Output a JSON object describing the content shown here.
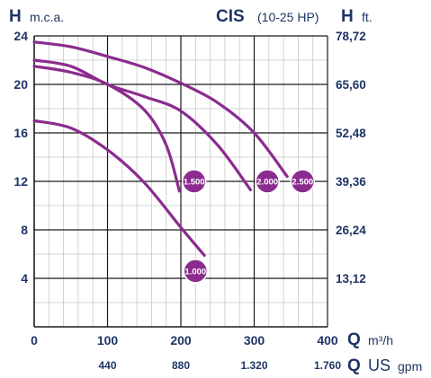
{
  "header": {
    "left_symbol": "H",
    "left_unit": "m.c.a.",
    "model": "CIS",
    "power_range": "(10-25 HP)",
    "right_symbol": "H",
    "right_unit": "ft.",
    "bottom_symbol": "Q",
    "bottom_unit": "m³/h",
    "bottom2_symbol": "Q",
    "bottom2_unit_main": "US",
    "bottom2_unit_sub": "gpm"
  },
  "colors": {
    "curve": "#8b2b8f",
    "text": "#1f3566",
    "grid": "#1a1a1a",
    "minor_grid": "#c8c8c8"
  },
  "chart_data": {
    "type": "line",
    "title": "CIS (10-25 HP)",
    "xlabel": "Q m³/h",
    "ylabel": "H m.c.a.",
    "xlim": [
      0,
      400
    ],
    "ylim": [
      0,
      24
    ],
    "x_ticks": [
      0,
      100,
      200,
      300,
      400
    ],
    "x_tick_labels": [
      "0",
      "100",
      "200",
      "300",
      "400"
    ],
    "y_ticks": [
      4,
      8,
      12,
      16,
      20,
      24
    ],
    "y_tick_labels": [
      "4",
      "8",
      "12",
      "16",
      "20",
      "24"
    ],
    "y2_ticks": [
      4,
      8,
      12,
      16,
      20,
      24
    ],
    "y2_tick_labels": [
      "13,12",
      "26,24",
      "39,36",
      "52,48",
      "65,60",
      "78,72"
    ],
    "x2_ticks": [
      100,
      200,
      300,
      400
    ],
    "x2_tick_labels": [
      "440",
      "880",
      "1.320",
      "1.760"
    ],
    "grid": true,
    "series": [
      {
        "name": "1.000",
        "x": [
          0,
          50,
          100,
          150,
          200,
          232
        ],
        "y": [
          17,
          16.4,
          14.6,
          11.9,
          8.2,
          5.9
        ],
        "label_at": [
          220,
          4.6
        ]
      },
      {
        "name": "1.500",
        "x": [
          0,
          50,
          100,
          150,
          180,
          198
        ],
        "y": [
          21.5,
          21.0,
          20.0,
          17.9,
          15.0,
          11.2
        ],
        "label_at": [
          218,
          12
        ]
      },
      {
        "name": "2.000",
        "x": [
          0,
          50,
          100,
          150,
          200,
          250,
          295
        ],
        "y": [
          22,
          21.5,
          20.0,
          19.0,
          17.8,
          15.0,
          11.3
        ],
        "label_at": [
          318,
          12
        ]
      },
      {
        "name": "2.500",
        "x": [
          0,
          50,
          100,
          150,
          200,
          250,
          300,
          345
        ],
        "y": [
          23.5,
          23.1,
          22.3,
          21.4,
          20.1,
          18.5,
          16.0,
          12.4
        ],
        "label_at": [
          366,
          12
        ]
      }
    ]
  }
}
